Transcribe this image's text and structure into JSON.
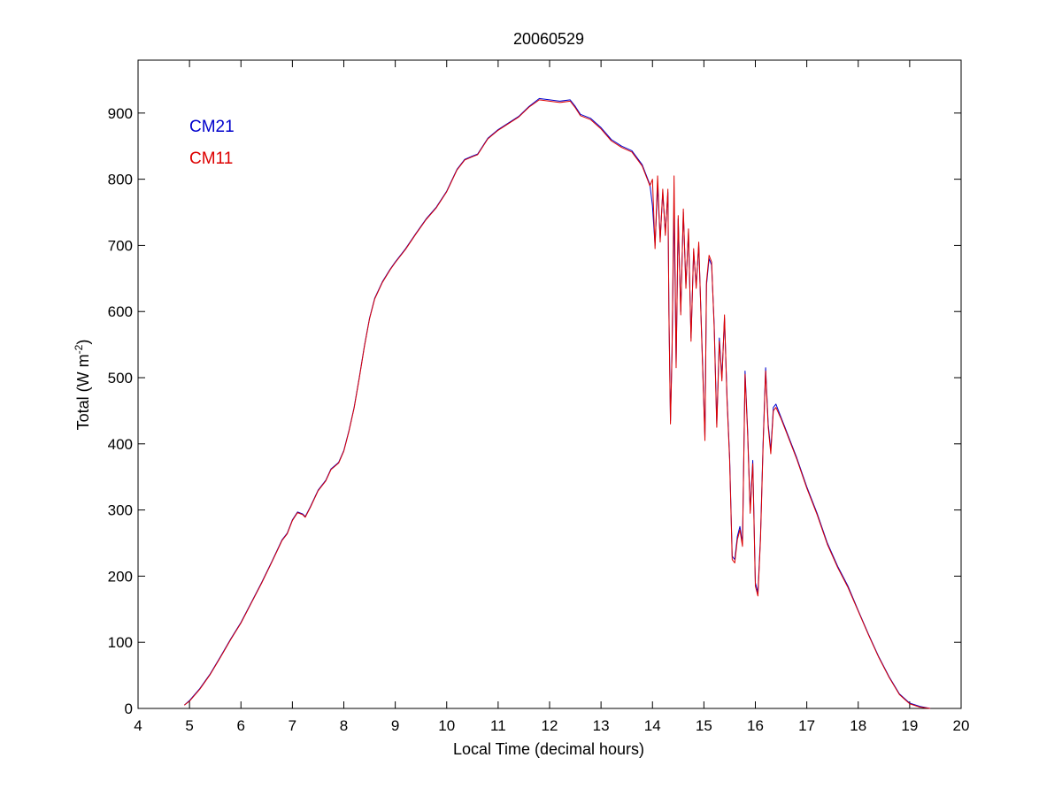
{
  "chart_data": {
    "type": "line",
    "title": "20060529",
    "xlabel": "Local Time (decimal hours)",
    "ylabel": "Total (W m",
    "ylabel_superscript": "-2",
    "ylabel_suffix": ")",
    "xlim": [
      4,
      20
    ],
    "ylim": [
      0,
      980
    ],
    "x_ticks": [
      4,
      5,
      6,
      7,
      8,
      9,
      10,
      11,
      12,
      13,
      14,
      15,
      16,
      17,
      18,
      19,
      20
    ],
    "y_ticks": [
      0,
      100,
      200,
      300,
      400,
      500,
      600,
      700,
      800,
      900
    ],
    "grid": false,
    "legend_placement": "top-left",
    "series": [
      {
        "name": "CM21",
        "color": "#0000cc",
        "points": [
          [
            4.9,
            5
          ],
          [
            5.0,
            12
          ],
          [
            5.2,
            30
          ],
          [
            5.4,
            52
          ],
          [
            5.6,
            78
          ],
          [
            5.8,
            105
          ],
          [
            6.0,
            130
          ],
          [
            6.2,
            160
          ],
          [
            6.4,
            190
          ],
          [
            6.6,
            222
          ],
          [
            6.8,
            255
          ],
          [
            6.9,
            265
          ],
          [
            7.0,
            285
          ],
          [
            7.1,
            297
          ],
          [
            7.2,
            294
          ],
          [
            7.25,
            290
          ],
          [
            7.35,
            305
          ],
          [
            7.5,
            330
          ],
          [
            7.65,
            345
          ],
          [
            7.75,
            362
          ],
          [
            7.9,
            372
          ],
          [
            8.0,
            390
          ],
          [
            8.1,
            420
          ],
          [
            8.2,
            455
          ],
          [
            8.3,
            500
          ],
          [
            8.4,
            548
          ],
          [
            8.5,
            590
          ],
          [
            8.6,
            620
          ],
          [
            8.75,
            645
          ],
          [
            8.9,
            664
          ],
          [
            9.0,
            675
          ],
          [
            9.2,
            695
          ],
          [
            9.4,
            718
          ],
          [
            9.6,
            740
          ],
          [
            9.8,
            758
          ],
          [
            10.0,
            782
          ],
          [
            10.2,
            815
          ],
          [
            10.35,
            830
          ],
          [
            10.5,
            835
          ],
          [
            10.6,
            838
          ],
          [
            10.7,
            850
          ],
          [
            10.8,
            862
          ],
          [
            11.0,
            875
          ],
          [
            11.2,
            885
          ],
          [
            11.4,
            895
          ],
          [
            11.6,
            910
          ],
          [
            11.8,
            922
          ],
          [
            12.0,
            920
          ],
          [
            12.2,
            918
          ],
          [
            12.4,
            920
          ],
          [
            12.5,
            910
          ],
          [
            12.6,
            898
          ],
          [
            12.8,
            892
          ],
          [
            13.0,
            878
          ],
          [
            13.2,
            860
          ],
          [
            13.4,
            850
          ],
          [
            13.6,
            843
          ],
          [
            13.8,
            822
          ],
          [
            13.95,
            792
          ],
          [
            14.0,
            760
          ],
          [
            14.05,
            700
          ],
          [
            14.1,
            790
          ],
          [
            14.15,
            710
          ],
          [
            14.2,
            780
          ],
          [
            14.25,
            720
          ],
          [
            14.3,
            780
          ],
          [
            14.32,
            600
          ],
          [
            14.35,
            435
          ],
          [
            14.38,
            540
          ],
          [
            14.42,
            760
          ],
          [
            14.46,
            520
          ],
          [
            14.5,
            740
          ],
          [
            14.55,
            600
          ],
          [
            14.6,
            750
          ],
          [
            14.65,
            640
          ],
          [
            14.7,
            720
          ],
          [
            14.75,
            560
          ],
          [
            14.8,
            690
          ],
          [
            14.85,
            640
          ],
          [
            14.9,
            700
          ],
          [
            14.95,
            580
          ],
          [
            15.0,
            460
          ],
          [
            15.02,
            410
          ],
          [
            15.05,
            640
          ],
          [
            15.1,
            680
          ],
          [
            15.15,
            670
          ],
          [
            15.2,
            580
          ],
          [
            15.25,
            430
          ],
          [
            15.3,
            560
          ],
          [
            15.35,
            500
          ],
          [
            15.4,
            590
          ],
          [
            15.45,
            470
          ],
          [
            15.5,
            380
          ],
          [
            15.55,
            230
          ],
          [
            15.6,
            225
          ],
          [
            15.65,
            260
          ],
          [
            15.7,
            275
          ],
          [
            15.75,
            250
          ],
          [
            15.8,
            510
          ],
          [
            15.85,
            420
          ],
          [
            15.9,
            300
          ],
          [
            15.95,
            375
          ],
          [
            16.0,
            190
          ],
          [
            16.05,
            175
          ],
          [
            16.1,
            260
          ],
          [
            16.15,
            400
          ],
          [
            16.2,
            515
          ],
          [
            16.25,
            430
          ],
          [
            16.3,
            390
          ],
          [
            16.35,
            455
          ],
          [
            16.4,
            460
          ],
          [
            16.5,
            440
          ],
          [
            16.6,
            420
          ],
          [
            16.8,
            380
          ],
          [
            17.0,
            335
          ],
          [
            17.2,
            295
          ],
          [
            17.4,
            250
          ],
          [
            17.6,
            215
          ],
          [
            17.8,
            185
          ],
          [
            18.0,
            148
          ],
          [
            18.2,
            112
          ],
          [
            18.4,
            78
          ],
          [
            18.6,
            48
          ],
          [
            18.8,
            22
          ],
          [
            19.0,
            8
          ],
          [
            19.2,
            3
          ],
          [
            19.4,
            0
          ]
        ]
      },
      {
        "name": "CM11",
        "color": "#dd0000",
        "points": [
          [
            4.9,
            5
          ],
          [
            5.0,
            11
          ],
          [
            5.2,
            29
          ],
          [
            5.4,
            51
          ],
          [
            5.6,
            77
          ],
          [
            5.8,
            104
          ],
          [
            6.0,
            129
          ],
          [
            6.2,
            159
          ],
          [
            6.4,
            189
          ],
          [
            6.6,
            221
          ],
          [
            6.8,
            254
          ],
          [
            6.9,
            264
          ],
          [
            7.0,
            284
          ],
          [
            7.1,
            296
          ],
          [
            7.2,
            293
          ],
          [
            7.25,
            289
          ],
          [
            7.35,
            304
          ],
          [
            7.5,
            329
          ],
          [
            7.65,
            344
          ],
          [
            7.75,
            361
          ],
          [
            7.9,
            371
          ],
          [
            8.0,
            389
          ],
          [
            8.1,
            419
          ],
          [
            8.2,
            454
          ],
          [
            8.3,
            499
          ],
          [
            8.4,
            547
          ],
          [
            8.5,
            589
          ],
          [
            8.6,
            619
          ],
          [
            8.75,
            644
          ],
          [
            8.9,
            663
          ],
          [
            9.0,
            674
          ],
          [
            9.2,
            694
          ],
          [
            9.4,
            717
          ],
          [
            9.6,
            739
          ],
          [
            9.8,
            757
          ],
          [
            10.0,
            781
          ],
          [
            10.2,
            814
          ],
          [
            10.35,
            829
          ],
          [
            10.5,
            834
          ],
          [
            10.6,
            837
          ],
          [
            10.7,
            849
          ],
          [
            10.8,
            861
          ],
          [
            11.0,
            874
          ],
          [
            11.2,
            884
          ],
          [
            11.4,
            894
          ],
          [
            11.6,
            909
          ],
          [
            11.8,
            920
          ],
          [
            12.0,
            918
          ],
          [
            12.2,
            916
          ],
          [
            12.4,
            918
          ],
          [
            12.5,
            908
          ],
          [
            12.6,
            896
          ],
          [
            12.8,
            890
          ],
          [
            13.0,
            876
          ],
          [
            13.2,
            858
          ],
          [
            13.4,
            848
          ],
          [
            13.6,
            841
          ],
          [
            13.8,
            820
          ],
          [
            13.95,
            790
          ],
          [
            14.0,
            800
          ],
          [
            14.05,
            695
          ],
          [
            14.1,
            805
          ],
          [
            14.15,
            705
          ],
          [
            14.2,
            785
          ],
          [
            14.25,
            715
          ],
          [
            14.3,
            785
          ],
          [
            14.32,
            595
          ],
          [
            14.35,
            430
          ],
          [
            14.38,
            535
          ],
          [
            14.42,
            805
          ],
          [
            14.46,
            515
          ],
          [
            14.5,
            745
          ],
          [
            14.55,
            595
          ],
          [
            14.6,
            755
          ],
          [
            14.65,
            635
          ],
          [
            14.7,
            725
          ],
          [
            14.75,
            555
          ],
          [
            14.8,
            695
          ],
          [
            14.85,
            635
          ],
          [
            14.9,
            705
          ],
          [
            14.95,
            575
          ],
          [
            15.0,
            455
          ],
          [
            15.02,
            405
          ],
          [
            15.05,
            645
          ],
          [
            15.1,
            685
          ],
          [
            15.15,
            675
          ],
          [
            15.2,
            575
          ],
          [
            15.25,
            425
          ],
          [
            15.3,
            555
          ],
          [
            15.35,
            495
          ],
          [
            15.4,
            595
          ],
          [
            15.45,
            465
          ],
          [
            15.5,
            375
          ],
          [
            15.55,
            225
          ],
          [
            15.6,
            220
          ],
          [
            15.65,
            255
          ],
          [
            15.7,
            270
          ],
          [
            15.75,
            245
          ],
          [
            15.8,
            505
          ],
          [
            15.85,
            415
          ],
          [
            15.9,
            295
          ],
          [
            15.95,
            370
          ],
          [
            16.0,
            185
          ],
          [
            16.05,
            170
          ],
          [
            16.1,
            255
          ],
          [
            16.15,
            395
          ],
          [
            16.2,
            510
          ],
          [
            16.25,
            425
          ],
          [
            16.3,
            385
          ],
          [
            16.35,
            450
          ],
          [
            16.4,
            455
          ],
          [
            16.5,
            438
          ],
          [
            16.6,
            418
          ],
          [
            16.8,
            378
          ],
          [
            17.0,
            333
          ],
          [
            17.2,
            293
          ],
          [
            17.4,
            248
          ],
          [
            17.6,
            213
          ],
          [
            17.8,
            183
          ],
          [
            18.0,
            147
          ],
          [
            18.2,
            111
          ],
          [
            18.4,
            77
          ],
          [
            18.6,
            47
          ],
          [
            18.8,
            21
          ],
          [
            19.0,
            7
          ],
          [
            19.2,
            2
          ],
          [
            19.4,
            0
          ]
        ]
      }
    ]
  }
}
